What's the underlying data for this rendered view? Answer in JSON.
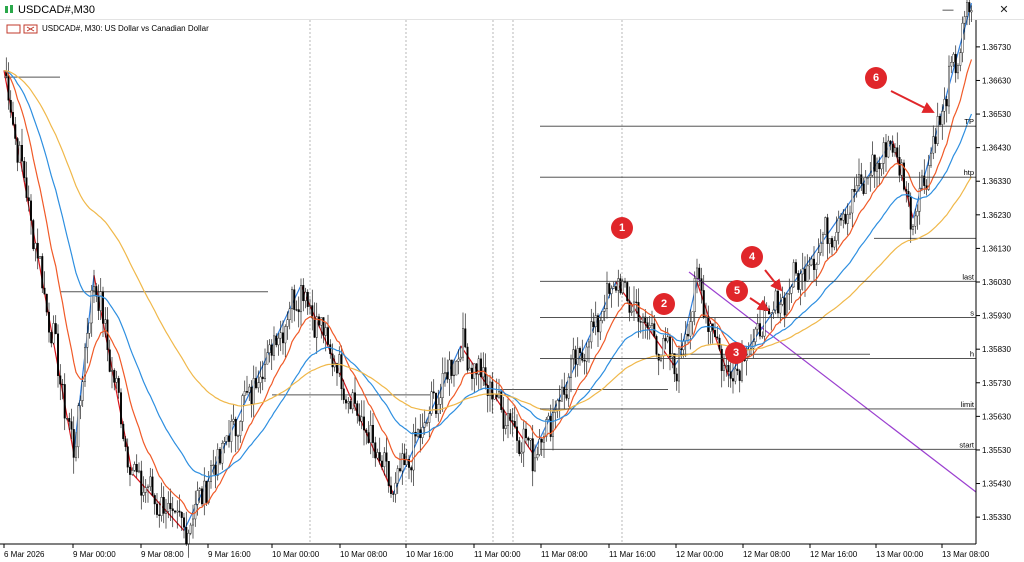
{
  "window": {
    "title": "USDCAD#,M30",
    "minimize": "—",
    "close": "✕"
  },
  "chart_header": {
    "label": "USDCAD#, M30:  US Dollar vs Canadian Dollar"
  },
  "colors": {
    "bull": "#ffffff",
    "bear": "#000000",
    "ma_fast": "#f05a28",
    "ma_mid": "#2e8fe0",
    "ma_slow": "#f0b84a",
    "zz_down": "#d8141a",
    "zz_up": "#2f7fe0",
    "trend": "#9b40d0",
    "level": "#3a3a3a",
    "arrow": "#e0262a"
  },
  "chart_data": {
    "type": "candlestick",
    "symbol": "USDCAD#",
    "timeframe": "M30",
    "ylim": [
      1.3525,
      1.3681
    ],
    "y_ticks": [
      "1.36730",
      "1.36630",
      "1.36530",
      "1.36430",
      "1.36330",
      "1.36230",
      "1.36130",
      "1.36030",
      "1.35930",
      "1.35830",
      "1.35730",
      "1.35630",
      "1.35530",
      "1.35430",
      "1.35330"
    ],
    "x_ticks": [
      "6 Mar 2026",
      "9 Mar 00:00",
      "9 Mar 08:00",
      "9 Mar 16:00",
      "10 Mar 00:00",
      "10 Mar 08:00",
      "10 Mar 16:00",
      "11 Mar 00:00",
      "11 Mar 08:00",
      "11 Mar 16:00",
      "12 Mar 00:00",
      "12 Mar 08:00",
      "12 Mar 16:00",
      "13 Mar 00:00",
      "13 Mar 08:00"
    ],
    "zigzag": [
      [
        0,
        1.3666
      ],
      [
        31,
        1.3552
      ],
      [
        40,
        1.3605
      ],
      [
        57,
        1.3546
      ],
      [
        80,
        1.3529
      ],
      [
        132,
        1.3602
      ],
      [
        173,
        1.354
      ],
      [
        203,
        1.3584
      ],
      [
        235,
        1.3552
      ],
      [
        272,
        1.3603
      ],
      [
        298,
        1.3578
      ],
      [
        300,
        1.358
      ],
      [
        308,
        1.3603
      ],
      [
        322,
        1.3575
      ],
      [
        395,
        1.3645
      ],
      [
        404,
        1.3622
      ],
      [
        430,
        1.3686
      ]
    ],
    "levels": [
      {
        "label": "TP",
        "price": 1.36494
      },
      {
        "label": "htp",
        "price": 1.36342
      },
      {
        "label": "last",
        "price": 1.36032
      },
      {
        "label": "s",
        "price": 1.35924
      },
      {
        "label": "h",
        "price": 1.35802
      },
      {
        "label": "limit",
        "price": 1.35652
      },
      {
        "label": "start",
        "price": 1.35532
      }
    ],
    "annotations": [
      "1",
      "2",
      "3",
      "4",
      "5",
      "6"
    ]
  }
}
